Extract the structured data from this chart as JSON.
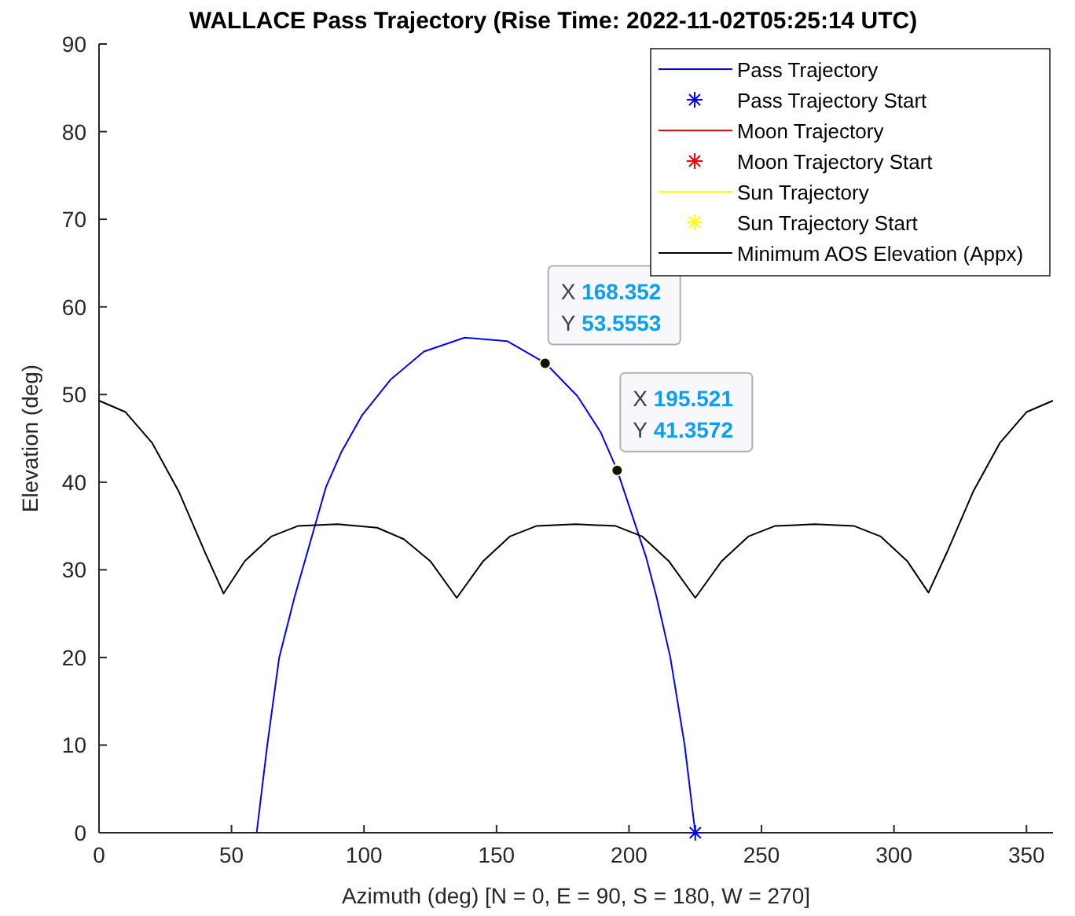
{
  "chart_data": {
    "type": "line",
    "title": "WALLACE Pass Trajectory (Rise Time: 2022-11-02T05:25:14 UTC)",
    "xlabel": "Azimuth (deg) [N = 0, E = 90, S = 180, W = 270]",
    "ylabel": "Elevation (deg)",
    "xlim": [
      0,
      360
    ],
    "ylim": [
      0,
      90
    ],
    "xticks": [
      0,
      50,
      100,
      150,
      200,
      250,
      300,
      350
    ],
    "yticks": [
      0,
      10,
      20,
      30,
      40,
      50,
      60,
      70,
      80,
      90
    ],
    "grid": false,
    "legend": "top right",
    "series": [
      {
        "name": "Pass Trajectory",
        "color": "#0000ff",
        "marker": "none",
        "x": [
          225,
          221,
          215.6,
          210.4,
          206.4,
          195.5,
          189.3,
          180.6,
          168.4,
          154,
          138,
          122.6,
          110,
          99.2,
          91.4,
          85.6,
          73.8,
          68,
          63.5,
          59.5
        ],
        "values": [
          0,
          10,
          20,
          26.9,
          31.5,
          41.4,
          45.7,
          49.8,
          53.6,
          56.1,
          56.5,
          54.9,
          51.7,
          47.6,
          43.4,
          39.4,
          26.9,
          20,
          10,
          0
        ]
      },
      {
        "name": "Pass Trajectory Start",
        "type": "scatter",
        "color": "#0000ff",
        "marker": "cross",
        "x": [
          225
        ],
        "values": [
          0
        ]
      },
      {
        "name": "Moon Trajectory",
        "color": "#ff0000",
        "marker": "none"
      },
      {
        "name": "Moon Trajectory Start",
        "type": "scatter",
        "color": "#ff0000",
        "marker": "cross"
      },
      {
        "name": "Sun Trajectory",
        "color": "#ffff00",
        "marker": "none"
      },
      {
        "name": "Sun Trajectory Start",
        "type": "scatter",
        "color": "#ffff00",
        "marker": "cross"
      },
      {
        "name": "Minimum AOS Elevation (Appx)",
        "color": "#000000",
        "marker": "none",
        "x": [
          0,
          10,
          20,
          30,
          40,
          47,
          55,
          65,
          75,
          90,
          105,
          115,
          125,
          135,
          145,
          155,
          165,
          180,
          195,
          205,
          215,
          225,
          235,
          245,
          255,
          270,
          285,
          295,
          305,
          313,
          320,
          330,
          340,
          350,
          360
        ],
        "values": [
          49.3,
          48,
          44.5,
          39,
          32,
          27.3,
          31,
          33.8,
          35,
          35.2,
          34.8,
          33.5,
          31,
          26.8,
          31,
          33.8,
          35,
          35.2,
          35,
          33.8,
          31,
          26.8,
          31,
          33.8,
          35,
          35.2,
          35,
          33.8,
          31,
          27.4,
          32,
          39,
          44.5,
          48,
          49.3
        ]
      }
    ],
    "annotations": [
      {
        "text": "X 168.352\nY 53.5553",
        "x": 168.352,
        "y": 53.5553
      },
      {
        "text": "X 195.521\nY 41.3572",
        "x": 195.521,
        "y": 41.3572
      }
    ]
  }
}
